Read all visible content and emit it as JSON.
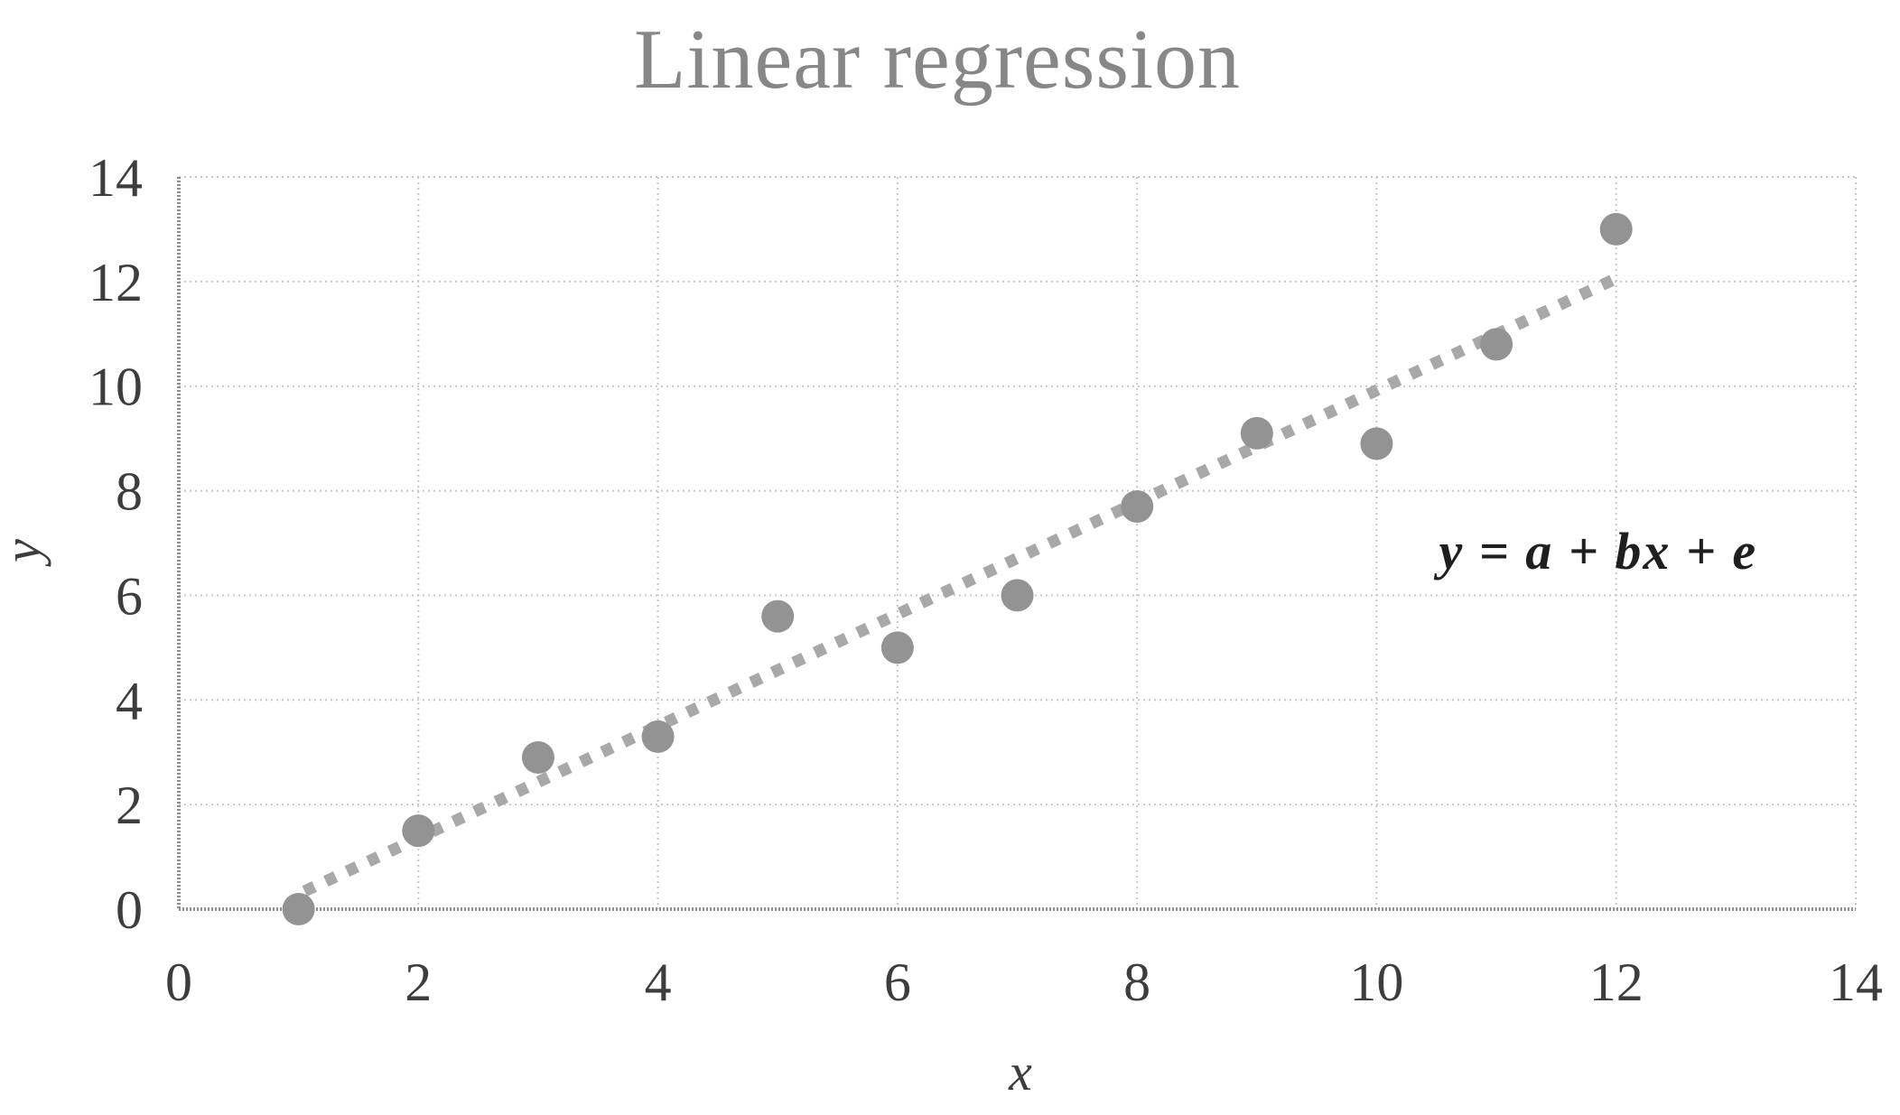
{
  "page": {
    "background": "#ffffff"
  },
  "chart_data": {
    "type": "scatter",
    "title": "Linear regression",
    "xlabel": "x",
    "ylabel": "y",
    "xlim": [
      0,
      14
    ],
    "ylim": [
      0,
      14
    ],
    "xticks": [
      0,
      2,
      4,
      6,
      8,
      10,
      12,
      14
    ],
    "yticks": [
      0,
      2,
      4,
      6,
      8,
      10,
      12,
      14
    ],
    "grid": true,
    "legend": false,
    "points": [
      {
        "x": 1,
        "y": 0.0
      },
      {
        "x": 2,
        "y": 1.5
      },
      {
        "x": 3,
        "y": 2.9
      },
      {
        "x": 4,
        "y": 3.3
      },
      {
        "x": 5,
        "y": 5.6
      },
      {
        "x": 6,
        "y": 5.0
      },
      {
        "x": 7,
        "y": 6.0
      },
      {
        "x": 8,
        "y": 7.7
      },
      {
        "x": 9,
        "y": 9.1
      },
      {
        "x": 10,
        "y": 8.9
      },
      {
        "x": 11,
        "y": 10.8
      },
      {
        "x": 12,
        "y": 13.0
      }
    ],
    "trendline": {
      "style": "dotted",
      "slope": 1.07,
      "intercept": -0.78,
      "x_start": 1.05,
      "x_end": 12.05
    },
    "annotation": {
      "text": "y = a + bx + e",
      "x": 11.85,
      "y": 6.85
    }
  },
  "colors": {
    "background": "#ffffff",
    "title": "#878787",
    "tick_label": "#3d3d3d",
    "axis_label": "#3d3d3d",
    "gridline": "#c7c7c7",
    "axis_line": "#8f8f8f",
    "point": "#939393",
    "trendline": "#a8a8a8",
    "formula": "#1f1f1f"
  }
}
